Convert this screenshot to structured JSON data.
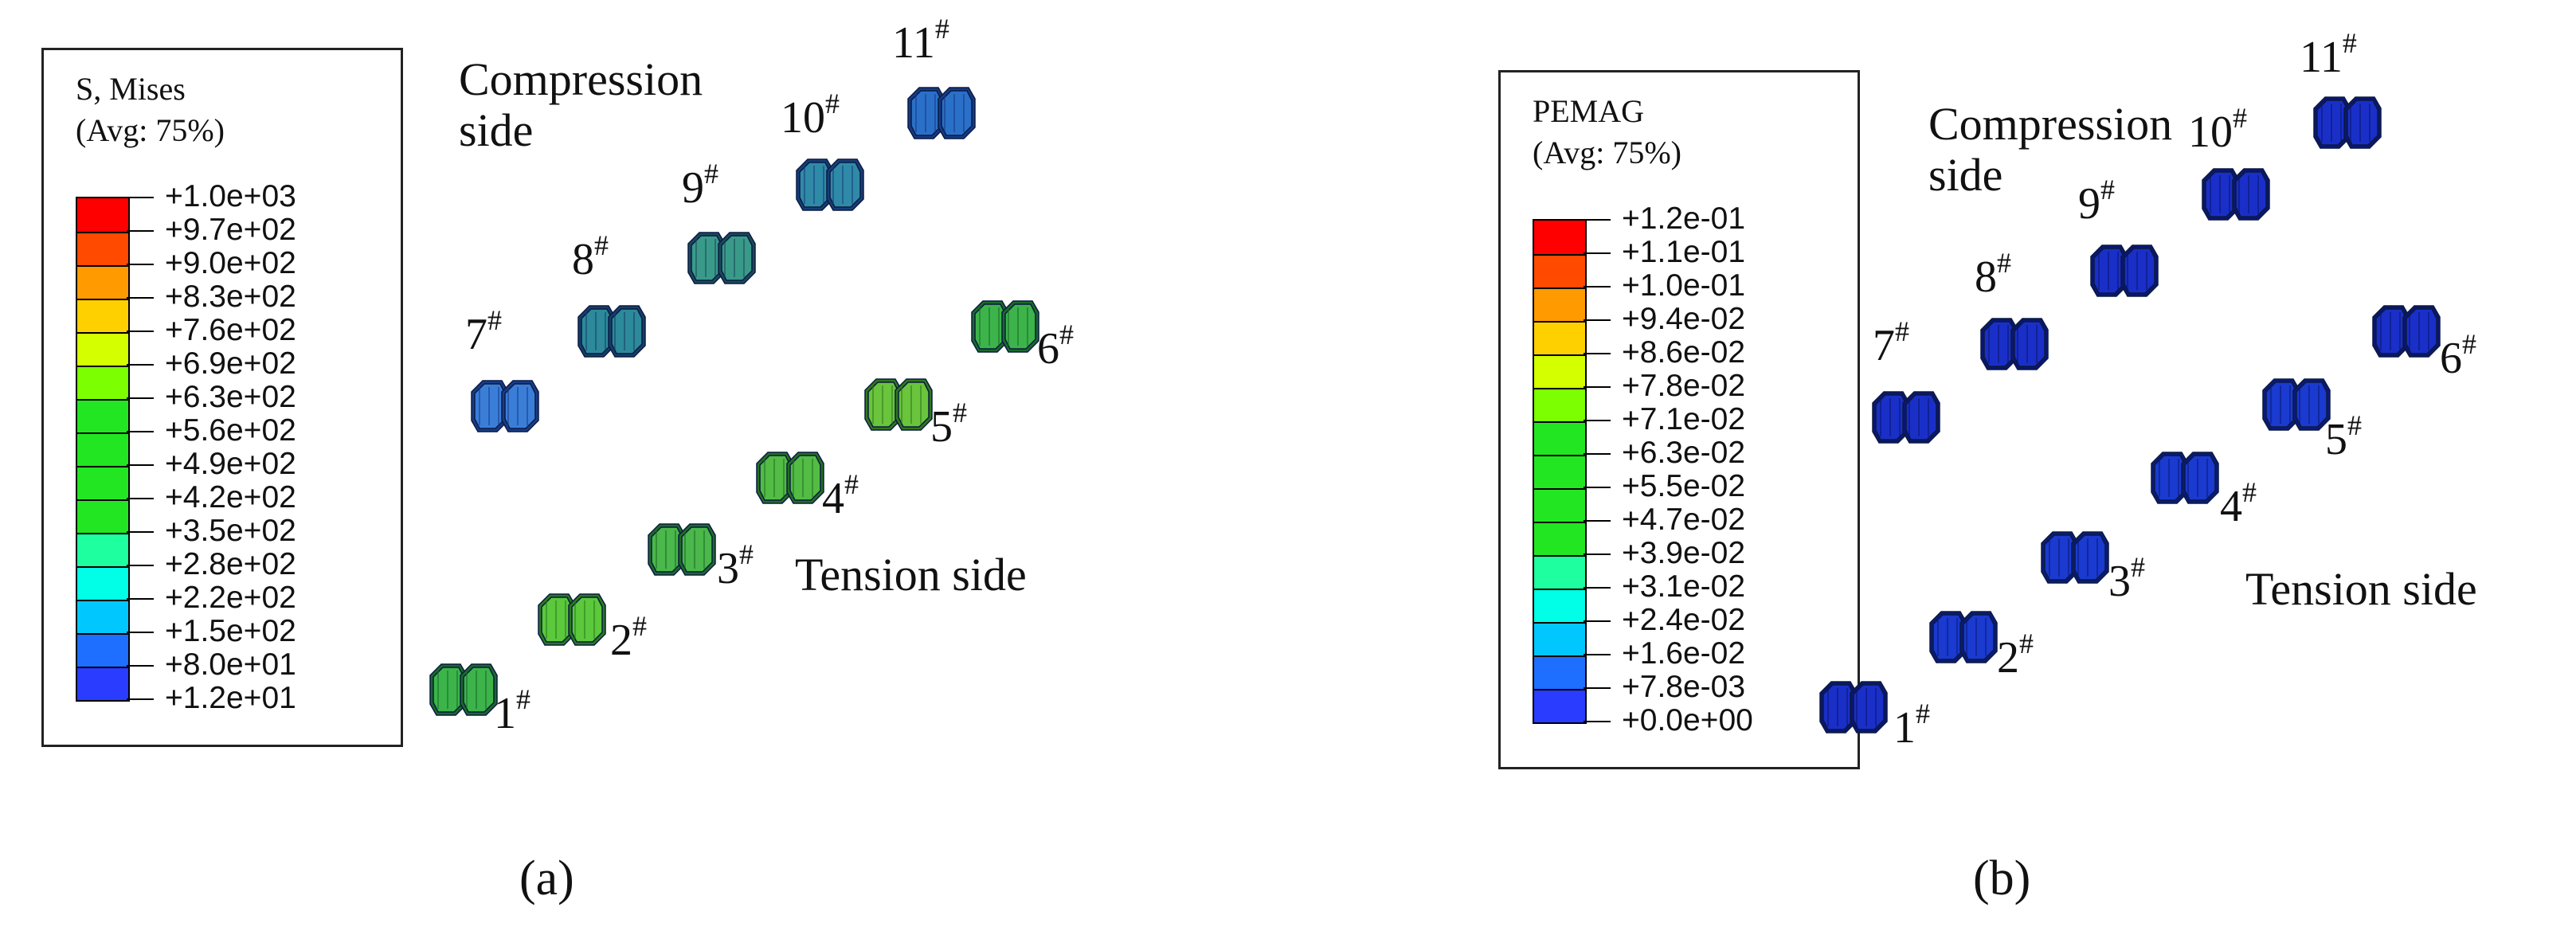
{
  "panels": [
    {
      "id": "a",
      "caption": "(a)",
      "legend": {
        "title": "S, Mises",
        "subtitle": "(Avg: 75%)",
        "labels": [
          "+1.0e+03",
          "+9.7e+02",
          "+9.0e+02",
          "+8.3e+02",
          "+7.6e+02",
          "+6.9e+02",
          "+6.3e+02",
          "+5.6e+02",
          "+4.9e+02",
          "+4.2e+02",
          "+3.5e+02",
          "+2.8e+02",
          "+2.2e+02",
          "+1.5e+02",
          "+8.0e+01",
          "+1.2e+01"
        ],
        "colors": [
          "#ff0000",
          "#ff4a00",
          "#ff9a00",
          "#ffd000",
          "#d4ff00",
          "#7cff00",
          "#22e622",
          "#22e622",
          "#22e622",
          "#22e622",
          "#1effa0",
          "#00ffe6",
          "#00c8ff",
          "#1e6eff",
          "#2a3cff",
          "#0000ff"
        ]
      },
      "compression_label": "Compression\nside",
      "tension_label": "Tension side",
      "bolts": [
        {
          "num": "1",
          "sup": "#",
          "color": "#3cb44a",
          "shade": "#1a6a2a"
        },
        {
          "num": "2",
          "sup": "#",
          "color": "#5cc83c",
          "shade": "#2a7a1e"
        },
        {
          "num": "3",
          "sup": "#",
          "color": "#4ab84a",
          "shade": "#1f6a28"
        },
        {
          "num": "4",
          "sup": "#",
          "color": "#52bc44",
          "shade": "#247023"
        },
        {
          "num": "5",
          "sup": "#",
          "color": "#6ac43c",
          "shade": "#2f781c"
        },
        {
          "num": "6",
          "sup": "#",
          "color": "#3cb44a",
          "shade": "#1a6a2a"
        },
        {
          "num": "7",
          "sup": "#",
          "color": "#3a7ed8",
          "shade": "#1a3c8a"
        },
        {
          "num": "8",
          "sup": "#",
          "color": "#2c8a9a",
          "shade": "#173e6a"
        },
        {
          "num": "9",
          "sup": "#",
          "color": "#3a9a8a",
          "shade": "#1b4a5a"
        },
        {
          "num": "10",
          "sup": "#",
          "color": "#2f8aa8",
          "shade": "#173e78"
        },
        {
          "num": "11",
          "sup": "#",
          "color": "#2a70c8",
          "shade": "#153a88"
        }
      ]
    },
    {
      "id": "b",
      "caption": "(b)",
      "legend": {
        "title": "PEMAG",
        "subtitle": "(Avg: 75%)",
        "labels": [
          "+1.2e-01",
          "+1.1e-01",
          "+1.0e-01",
          "+9.4e-02",
          "+8.6e-02",
          "+7.8e-02",
          "+7.1e-02",
          "+6.3e-02",
          "+5.5e-02",
          "+4.7e-02",
          "+3.9e-02",
          "+3.1e-02",
          "+2.4e-02",
          "+1.6e-02",
          "+7.8e-03",
          "+0.0e+00"
        ],
        "colors": [
          "#ff0000",
          "#ff4a00",
          "#ff9a00",
          "#ffd000",
          "#d4ff00",
          "#7cff00",
          "#22e622",
          "#22e622",
          "#22e622",
          "#22e622",
          "#1effa0",
          "#00ffe6",
          "#00c8ff",
          "#1e6eff",
          "#2a3cff",
          "#0000ff"
        ]
      },
      "compression_label": "Compression\nside",
      "tension_label": "Tension side",
      "bolts": [
        {
          "num": "1",
          "sup": "#",
          "color": "#1a2fc8",
          "shade": "#0b1670"
        },
        {
          "num": "2",
          "sup": "#",
          "color": "#1a3ad0",
          "shade": "#0b1a78"
        },
        {
          "num": "3",
          "sup": "#",
          "color": "#1a3ad0",
          "shade": "#0b1a78"
        },
        {
          "num": "4",
          "sup": "#",
          "color": "#1a3ad0",
          "shade": "#0b1a78"
        },
        {
          "num": "5",
          "sup": "#",
          "color": "#1a3ad0",
          "shade": "#0b1a78"
        },
        {
          "num": "6",
          "sup": "#",
          "color": "#1a2fc8",
          "shade": "#0b1670"
        },
        {
          "num": "7",
          "sup": "#",
          "color": "#1a2fc8",
          "shade": "#0b1670"
        },
        {
          "num": "8",
          "sup": "#",
          "color": "#1a2fc8",
          "shade": "#0b1670"
        },
        {
          "num": "9",
          "sup": "#",
          "color": "#1a2fc8",
          "shade": "#0b1670"
        },
        {
          "num": "10",
          "sup": "#",
          "color": "#1a2fc8",
          "shade": "#0b1670"
        },
        {
          "num": "11",
          "sup": "#",
          "color": "#1a2fc8",
          "shade": "#0b1670"
        }
      ]
    }
  ]
}
